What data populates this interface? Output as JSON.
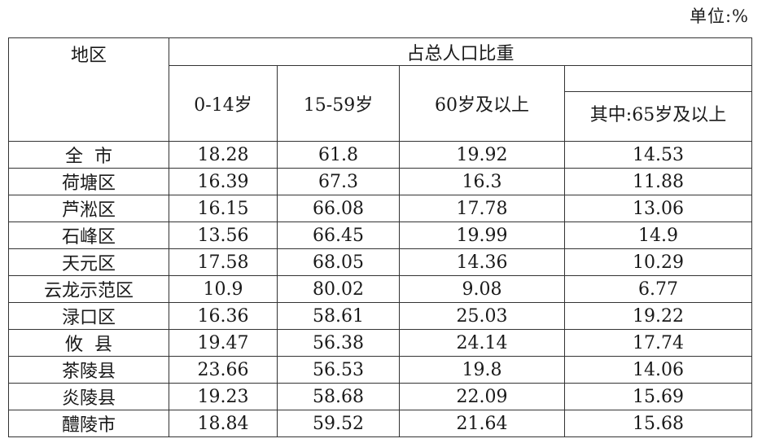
{
  "unit_note": "单位:%",
  "table": {
    "header": {
      "region": "地区",
      "group": "占总人口比重",
      "col_0_14": "0-14岁",
      "col_15_59": "15-59岁",
      "col_60_plus": "60岁及以上",
      "col_65_plus": "其中:65岁及以上"
    },
    "rows": [
      {
        "region": "全  市",
        "c0_14": "18.28",
        "c15_59": "61.8",
        "c60": "19.92",
        "c65": "14.53"
      },
      {
        "region": "荷塘区",
        "c0_14": "16.39",
        "c15_59": "67.3",
        "c60": "16.3",
        "c65": "11.88"
      },
      {
        "region": "芦淞区",
        "c0_14": "16.15",
        "c15_59": "66.08",
        "c60": "17.78",
        "c65": "13.06"
      },
      {
        "region": "石峰区",
        "c0_14": "13.56",
        "c15_59": "66.45",
        "c60": "19.99",
        "c65": "14.9"
      },
      {
        "region": "天元区",
        "c0_14": "17.58",
        "c15_59": "68.05",
        "c60": "14.36",
        "c65": "10.29"
      },
      {
        "region": "云龙示范区",
        "c0_14": "10.9",
        "c15_59": "80.02",
        "c60": "9.08",
        "c65": "6.77"
      },
      {
        "region": "渌口区",
        "c0_14": "16.36",
        "c15_59": "58.61",
        "c60": "25.03",
        "c65": "19.22"
      },
      {
        "region": "攸  县",
        "c0_14": "19.47",
        "c15_59": "56.38",
        "c60": "24.14",
        "c65": "17.74"
      },
      {
        "region": "茶陵县",
        "c0_14": "23.66",
        "c15_59": "56.53",
        "c60": "19.8",
        "c65": "14.06"
      },
      {
        "region": "炎陵县",
        "c0_14": "19.23",
        "c15_59": "58.68",
        "c60": "22.09",
        "c65": "15.69"
      },
      {
        "region": "醴陵市",
        "c0_14": "18.84",
        "c15_59": "59.52",
        "c60": "21.64",
        "c65": "15.68"
      }
    ]
  }
}
